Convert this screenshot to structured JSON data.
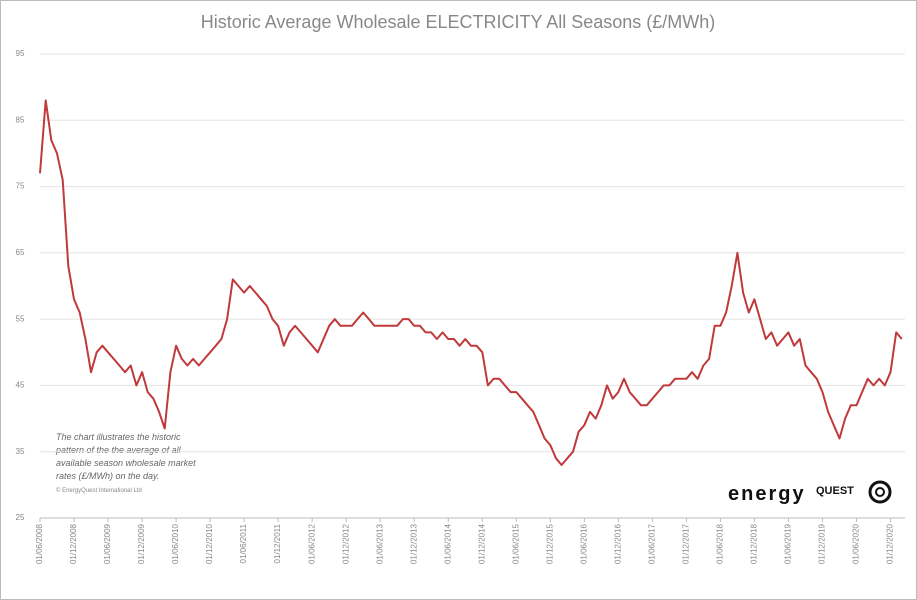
{
  "chart_data": {
    "type": "line",
    "title": "Historic Average Wholesale ELECTRICITY All Seasons (£/MWh)",
    "x": [
      "01/06/2008",
      "01/07/2008",
      "01/08/2008",
      "01/09/2008",
      "01/10/2008",
      "01/11/2008",
      "01/12/2008",
      "01/01/2009",
      "01/02/2009",
      "01/03/2009",
      "01/04/2009",
      "01/05/2009",
      "01/06/2009",
      "01/07/2009",
      "01/08/2009",
      "01/09/2009",
      "01/10/2009",
      "01/11/2009",
      "01/12/2009",
      "01/01/2010",
      "01/02/2010",
      "01/03/2010",
      "01/04/2010",
      "01/05/2010",
      "01/06/2010",
      "01/07/2010",
      "01/08/2010",
      "01/09/2010",
      "01/10/2010",
      "01/11/2010",
      "01/12/2010",
      "01/01/2011",
      "01/02/2011",
      "01/03/2011",
      "01/04/2011",
      "01/05/2011",
      "01/06/2011",
      "01/07/2011",
      "01/08/2011",
      "01/09/2011",
      "01/10/2011",
      "01/11/2011",
      "01/12/2011",
      "01/01/2012",
      "01/02/2012",
      "01/03/2012",
      "01/04/2012",
      "01/05/2012",
      "01/06/2012",
      "01/07/2012",
      "01/08/2012",
      "01/09/2012",
      "01/10/2012",
      "01/11/2012",
      "01/12/2012",
      "01/01/2013",
      "01/02/2013",
      "01/03/2013",
      "01/04/2013",
      "01/05/2013",
      "01/06/2013",
      "01/07/2013",
      "01/08/2013",
      "01/09/2013",
      "01/10/2013",
      "01/11/2013",
      "01/12/2013",
      "01/01/2014",
      "01/02/2014",
      "01/03/2014",
      "01/04/2014",
      "01/05/2014",
      "01/06/2014",
      "01/07/2014",
      "01/08/2014",
      "01/09/2014",
      "01/10/2014",
      "01/11/2014",
      "01/12/2014",
      "01/01/2015",
      "01/02/2015",
      "01/03/2015",
      "01/04/2015",
      "01/05/2015",
      "01/06/2015",
      "01/07/2015",
      "01/08/2015",
      "01/09/2015",
      "01/10/2015",
      "01/11/2015",
      "01/12/2015",
      "01/01/2016",
      "01/02/2016",
      "01/03/2016",
      "01/04/2016",
      "01/05/2016",
      "01/06/2016",
      "01/07/2016",
      "01/08/2016",
      "01/09/2016",
      "01/10/2016",
      "01/11/2016",
      "01/12/2016",
      "01/01/2017",
      "01/02/2017",
      "01/03/2017",
      "01/04/2017",
      "01/05/2017",
      "01/06/2017",
      "01/07/2017",
      "01/08/2017",
      "01/09/2017",
      "01/10/2017",
      "01/11/2017",
      "01/12/2017",
      "01/01/2018",
      "01/02/2018",
      "01/03/2018",
      "01/04/2018",
      "01/05/2018",
      "01/06/2018",
      "01/07/2018",
      "01/08/2018",
      "01/09/2018",
      "01/10/2018",
      "01/11/2018",
      "01/12/2018",
      "01/01/2019",
      "01/02/2019",
      "01/03/2019",
      "01/04/2019",
      "01/05/2019",
      "01/06/2019",
      "01/07/2019",
      "01/08/2019",
      "01/09/2019",
      "01/10/2019",
      "01/11/2019",
      "01/12/2019",
      "01/01/2020",
      "01/02/2020",
      "01/03/2020",
      "01/04/2020",
      "01/05/2020",
      "01/06/2020",
      "01/07/2020",
      "01/08/2020",
      "01/09/2020",
      "01/10/2020",
      "01/11/2020",
      "01/12/2020",
      "01/01/2021",
      "01/02/2021"
    ],
    "series": [
      {
        "color": "#c0393b",
        "values": [
          77,
          88,
          82,
          80,
          76,
          63,
          58,
          56,
          52,
          47,
          50,
          51,
          50,
          49,
          48,
          47,
          48,
          45,
          47,
          44,
          43,
          41,
          38.5,
          47,
          51,
          49,
          48,
          49,
          48,
          49,
          50,
          51,
          52,
          55,
          61,
          60,
          59,
          60,
          59,
          58,
          57,
          55,
          54,
          51,
          53,
          54,
          53,
          52,
          51,
          50,
          52,
          54,
          55,
          54,
          54,
          54,
          55,
          56,
          55,
          54,
          54,
          54,
          54,
          54,
          55,
          55,
          54,
          54,
          53,
          53,
          52,
          53,
          52,
          52,
          51,
          52,
          51,
          51,
          50,
          45,
          46,
          46,
          45,
          44,
          44,
          43,
          42,
          41,
          39,
          37,
          36,
          34,
          33,
          34,
          35,
          38,
          39,
          41,
          40,
          42,
          45,
          43,
          44,
          46,
          44,
          43,
          42,
          42,
          43,
          44,
          45,
          45,
          46,
          46,
          46,
          47,
          46,
          48,
          49,
          54,
          54,
          56,
          60,
          65,
          59,
          56,
          58,
          55,
          52,
          53,
          51,
          52,
          53,
          51,
          52,
          48,
          47,
          46,
          44,
          41,
          39,
          37,
          40,
          42,
          42,
          44,
          46,
          45,
          46,
          45,
          47,
          53,
          52
        ]
      }
    ],
    "xticks": [
      "01/06/2008",
      "01/12/2008",
      "01/06/2009",
      "01/12/2009",
      "01/06/2010",
      "01/12/2010",
      "01/06/2011",
      "01/12/2011",
      "01/06/2012",
      "01/12/2012",
      "01/06/2013",
      "01/12/2013",
      "01/06/2014",
      "01/12/2014",
      "01/06/2015",
      "01/12/2015",
      "01/06/2016",
      "01/12/2016",
      "01/06/2017",
      "01/12/2017",
      "01/06/2018",
      "01/12/2018",
      "01/06/2019",
      "01/12/2019",
      "01/06/2020",
      "01/12/2020"
    ],
    "ylim": [
      25,
      95
    ],
    "yticks": [
      25,
      35,
      45,
      55,
      65,
      75,
      85,
      95
    ],
    "grid": true,
    "annotation": [
      "The chart illustrates the historic",
      "pattern of the the average of all",
      "available season wholesale market",
      "rates (£/MWh) on the day."
    ],
    "copyright": "© EnergyQuest International Ltd",
    "logo": {
      "word1": "energy",
      "word2": "QUEST"
    }
  }
}
